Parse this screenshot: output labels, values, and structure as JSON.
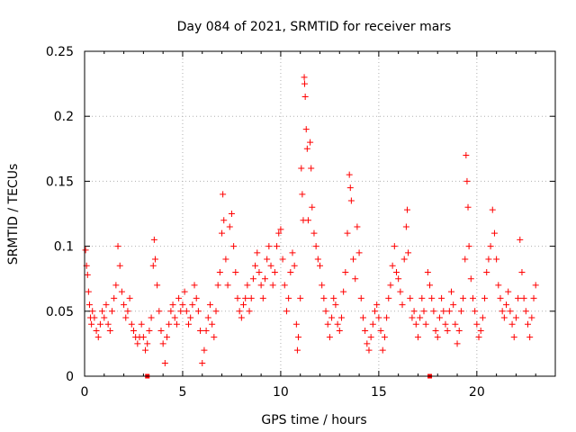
{
  "chart_data": {
    "type": "scatter",
    "title": "Day 084 of 2021, SRMTID for receiver mars",
    "xlabel": "GPS time / hours",
    "ylabel": "SRMTID / TECUs",
    "xlim": [
      0,
      24
    ],
    "ylim": [
      0,
      0.25
    ],
    "x_ticks": [
      0,
      5,
      10,
      15,
      20
    ],
    "x_tick_labels": [
      "0",
      "5",
      "10",
      "15",
      "20"
    ],
    "y_ticks": [
      0,
      0.05,
      0.1,
      0.15,
      0.2,
      0.25
    ],
    "y_tick_labels": [
      "0",
      "0.05",
      "0.1",
      "0.15",
      "0.2",
      "0.25"
    ],
    "grid": true,
    "marker": "+",
    "color": "#ff0000",
    "series": [
      {
        "name": "SRMTID",
        "points": [
          [
            0.05,
            0.097
          ],
          [
            0.1,
            0.085
          ],
          [
            0.15,
            0.078
          ],
          [
            0.2,
            0.065
          ],
          [
            0.25,
            0.055
          ],
          [
            0.3,
            0.045
          ],
          [
            0.35,
            0.04
          ],
          [
            0.4,
            0.05
          ],
          [
            0.5,
            0.045
          ],
          [
            0.6,
            0.035
          ],
          [
            0.7,
            0.03
          ],
          [
            0.8,
            0.04
          ],
          [
            0.9,
            0.05
          ],
          [
            1.0,
            0.045
          ],
          [
            1.1,
            0.055
          ],
          [
            1.2,
            0.04
          ],
          [
            1.3,
            0.035
          ],
          [
            1.4,
            0.05
          ],
          [
            1.5,
            0.06
          ],
          [
            1.6,
            0.07
          ],
          [
            1.7,
            0.1
          ],
          [
            1.8,
            0.085
          ],
          [
            1.9,
            0.065
          ],
          [
            2.0,
            0.055
          ],
          [
            2.1,
            0.045
          ],
          [
            2.2,
            0.05
          ],
          [
            2.3,
            0.06
          ],
          [
            2.4,
            0.04
          ],
          [
            2.5,
            0.035
          ],
          [
            2.6,
            0.03
          ],
          [
            2.7,
            0.025
          ],
          [
            2.8,
            0.03
          ],
          [
            2.9,
            0.04
          ],
          [
            3.0,
            0.03
          ],
          [
            3.1,
            0.02
          ],
          [
            3.2,
            0.025
          ],
          [
            3.3,
            0.035
          ],
          [
            3.4,
            0.045
          ],
          [
            3.5,
            0.085
          ],
          [
            3.55,
            0.105
          ],
          [
            3.6,
            0.09
          ],
          [
            3.7,
            0.07
          ],
          [
            3.8,
            0.05
          ],
          [
            3.9,
            0.035
          ],
          [
            4.0,
            0.025
          ],
          [
            4.1,
            0.01
          ],
          [
            4.2,
            0.03
          ],
          [
            4.3,
            0.04
          ],
          [
            4.4,
            0.05
          ],
          [
            4.5,
            0.055
          ],
          [
            4.6,
            0.045
          ],
          [
            4.7,
            0.04
          ],
          [
            4.8,
            0.06
          ],
          [
            4.9,
            0.05
          ],
          [
            5.0,
            0.055
          ],
          [
            5.1,
            0.065
          ],
          [
            5.2,
            0.05
          ],
          [
            5.3,
            0.04
          ],
          [
            5.4,
            0.045
          ],
          [
            5.5,
            0.055
          ],
          [
            5.6,
            0.07
          ],
          [
            5.7,
            0.06
          ],
          [
            5.8,
            0.05
          ],
          [
            5.9,
            0.035
          ],
          [
            6.0,
            0.01
          ],
          [
            6.1,
            0.02
          ],
          [
            6.2,
            0.035
          ],
          [
            6.3,
            0.045
          ],
          [
            6.4,
            0.055
          ],
          [
            6.5,
            0.04
          ],
          [
            6.6,
            0.03
          ],
          [
            6.7,
            0.05
          ],
          [
            6.8,
            0.07
          ],
          [
            6.9,
            0.08
          ],
          [
            7.0,
            0.11
          ],
          [
            7.05,
            0.14
          ],
          [
            7.1,
            0.12
          ],
          [
            7.2,
            0.09
          ],
          [
            7.3,
            0.07
          ],
          [
            7.4,
            0.115
          ],
          [
            7.5,
            0.125
          ],
          [
            7.6,
            0.1
          ],
          [
            7.7,
            0.08
          ],
          [
            7.8,
            0.06
          ],
          [
            7.9,
            0.05
          ],
          [
            8.0,
            0.045
          ],
          [
            8.1,
            0.055
          ],
          [
            8.2,
            0.06
          ],
          [
            8.3,
            0.07
          ],
          [
            8.4,
            0.05
          ],
          [
            8.5,
            0.06
          ],
          [
            8.6,
            0.075
          ],
          [
            8.7,
            0.085
          ],
          [
            8.8,
            0.095
          ],
          [
            8.9,
            0.08
          ],
          [
            9.0,
            0.07
          ],
          [
            9.1,
            0.06
          ],
          [
            9.2,
            0.075
          ],
          [
            9.3,
            0.09
          ],
          [
            9.4,
            0.1
          ],
          [
            9.5,
            0.085
          ],
          [
            9.6,
            0.07
          ],
          [
            9.7,
            0.08
          ],
          [
            9.8,
            0.1
          ],
          [
            9.9,
            0.11
          ],
          [
            10.0,
            0.113
          ],
          [
            10.1,
            0.09
          ],
          [
            10.2,
            0.07
          ],
          [
            10.3,
            0.05
          ],
          [
            10.4,
            0.06
          ],
          [
            10.5,
            0.08
          ],
          [
            10.6,
            0.095
          ],
          [
            10.7,
            0.085
          ],
          [
            10.8,
            0.04
          ],
          [
            10.85,
            0.02
          ],
          [
            10.9,
            0.03
          ],
          [
            11.0,
            0.06
          ],
          [
            11.05,
            0.16
          ],
          [
            11.1,
            0.14
          ],
          [
            11.15,
            0.12
          ],
          [
            11.2,
            0.23
          ],
          [
            11.22,
            0.225
          ],
          [
            11.25,
            0.215
          ],
          [
            11.3,
            0.19
          ],
          [
            11.35,
            0.175
          ],
          [
            11.4,
            0.12
          ],
          [
            11.5,
            0.18
          ],
          [
            11.55,
            0.16
          ],
          [
            11.6,
            0.13
          ],
          [
            11.7,
            0.11
          ],
          [
            11.8,
            0.1
          ],
          [
            11.9,
            0.09
          ],
          [
            12.0,
            0.085
          ],
          [
            12.1,
            0.07
          ],
          [
            12.2,
            0.06
          ],
          [
            12.3,
            0.05
          ],
          [
            12.4,
            0.04
          ],
          [
            12.5,
            0.03
          ],
          [
            12.6,
            0.045
          ],
          [
            12.7,
            0.06
          ],
          [
            12.8,
            0.055
          ],
          [
            12.9,
            0.04
          ],
          [
            13.0,
            0.035
          ],
          [
            13.1,
            0.045
          ],
          [
            13.2,
            0.065
          ],
          [
            13.3,
            0.08
          ],
          [
            13.4,
            0.11
          ],
          [
            13.5,
            0.155
          ],
          [
            13.55,
            0.145
          ],
          [
            13.6,
            0.135
          ],
          [
            13.7,
            0.09
          ],
          [
            13.8,
            0.075
          ],
          [
            13.9,
            0.115
          ],
          [
            14.0,
            0.095
          ],
          [
            14.1,
            0.06
          ],
          [
            14.2,
            0.045
          ],
          [
            14.3,
            0.035
          ],
          [
            14.4,
            0.025
          ],
          [
            14.5,
            0.02
          ],
          [
            14.6,
            0.03
          ],
          [
            14.7,
            0.04
          ],
          [
            14.8,
            0.05
          ],
          [
            14.9,
            0.055
          ],
          [
            15.0,
            0.045
          ],
          [
            15.1,
            0.035
          ],
          [
            15.2,
            0.02
          ],
          [
            15.3,
            0.03
          ],
          [
            15.4,
            0.045
          ],
          [
            15.5,
            0.06
          ],
          [
            15.6,
            0.07
          ],
          [
            15.7,
            0.085
          ],
          [
            15.8,
            0.1
          ],
          [
            15.9,
            0.08
          ],
          [
            16.0,
            0.075
          ],
          [
            16.1,
            0.065
          ],
          [
            16.2,
            0.055
          ],
          [
            16.3,
            0.09
          ],
          [
            16.4,
            0.115
          ],
          [
            16.45,
            0.128
          ],
          [
            16.5,
            0.095
          ],
          [
            16.6,
            0.06
          ],
          [
            16.7,
            0.045
          ],
          [
            16.8,
            0.05
          ],
          [
            16.9,
            0.04
          ],
          [
            17.0,
            0.03
          ],
          [
            17.1,
            0.045
          ],
          [
            17.2,
            0.06
          ],
          [
            17.3,
            0.05
          ],
          [
            17.4,
            0.04
          ],
          [
            17.5,
            0.08
          ],
          [
            17.6,
            0.07
          ],
          [
            17.7,
            0.06
          ],
          [
            17.8,
            0.05
          ],
          [
            17.9,
            0.035
          ],
          [
            18.0,
            0.03
          ],
          [
            18.1,
            0.045
          ],
          [
            18.2,
            0.06
          ],
          [
            18.3,
            0.05
          ],
          [
            18.4,
            0.04
          ],
          [
            18.5,
            0.035
          ],
          [
            18.6,
            0.05
          ],
          [
            18.7,
            0.065
          ],
          [
            18.8,
            0.055
          ],
          [
            18.9,
            0.04
          ],
          [
            19.0,
            0.025
          ],
          [
            19.1,
            0.035
          ],
          [
            19.2,
            0.05
          ],
          [
            19.3,
            0.06
          ],
          [
            19.4,
            0.09
          ],
          [
            19.45,
            0.17
          ],
          [
            19.5,
            0.15
          ],
          [
            19.55,
            0.13
          ],
          [
            19.6,
            0.1
          ],
          [
            19.7,
            0.075
          ],
          [
            19.8,
            0.06
          ],
          [
            19.9,
            0.05
          ],
          [
            20.0,
            0.04
          ],
          [
            20.1,
            0.03
          ],
          [
            20.2,
            0.035
          ],
          [
            20.3,
            0.045
          ],
          [
            20.4,
            0.06
          ],
          [
            20.5,
            0.08
          ],
          [
            20.6,
            0.09
          ],
          [
            20.7,
            0.1
          ],
          [
            20.8,
            0.128
          ],
          [
            20.9,
            0.11
          ],
          [
            21.0,
            0.09
          ],
          [
            21.1,
            0.07
          ],
          [
            21.2,
            0.06
          ],
          [
            21.3,
            0.05
          ],
          [
            21.4,
            0.045
          ],
          [
            21.5,
            0.055
          ],
          [
            21.6,
            0.065
          ],
          [
            21.7,
            0.05
          ],
          [
            21.8,
            0.04
          ],
          [
            21.9,
            0.03
          ],
          [
            22.0,
            0.045
          ],
          [
            22.1,
            0.06
          ],
          [
            22.2,
            0.105
          ],
          [
            22.3,
            0.08
          ],
          [
            22.4,
            0.06
          ],
          [
            22.5,
            0.05
          ],
          [
            22.6,
            0.04
          ],
          [
            22.7,
            0.03
          ],
          [
            22.8,
            0.045
          ],
          [
            22.9,
            0.06
          ],
          [
            23.0,
            0.07
          ]
        ]
      }
    ],
    "special_markers": [
      {
        "x": 3.2,
        "y": 0
      },
      {
        "x": 17.6,
        "y": 0
      }
    ]
  }
}
